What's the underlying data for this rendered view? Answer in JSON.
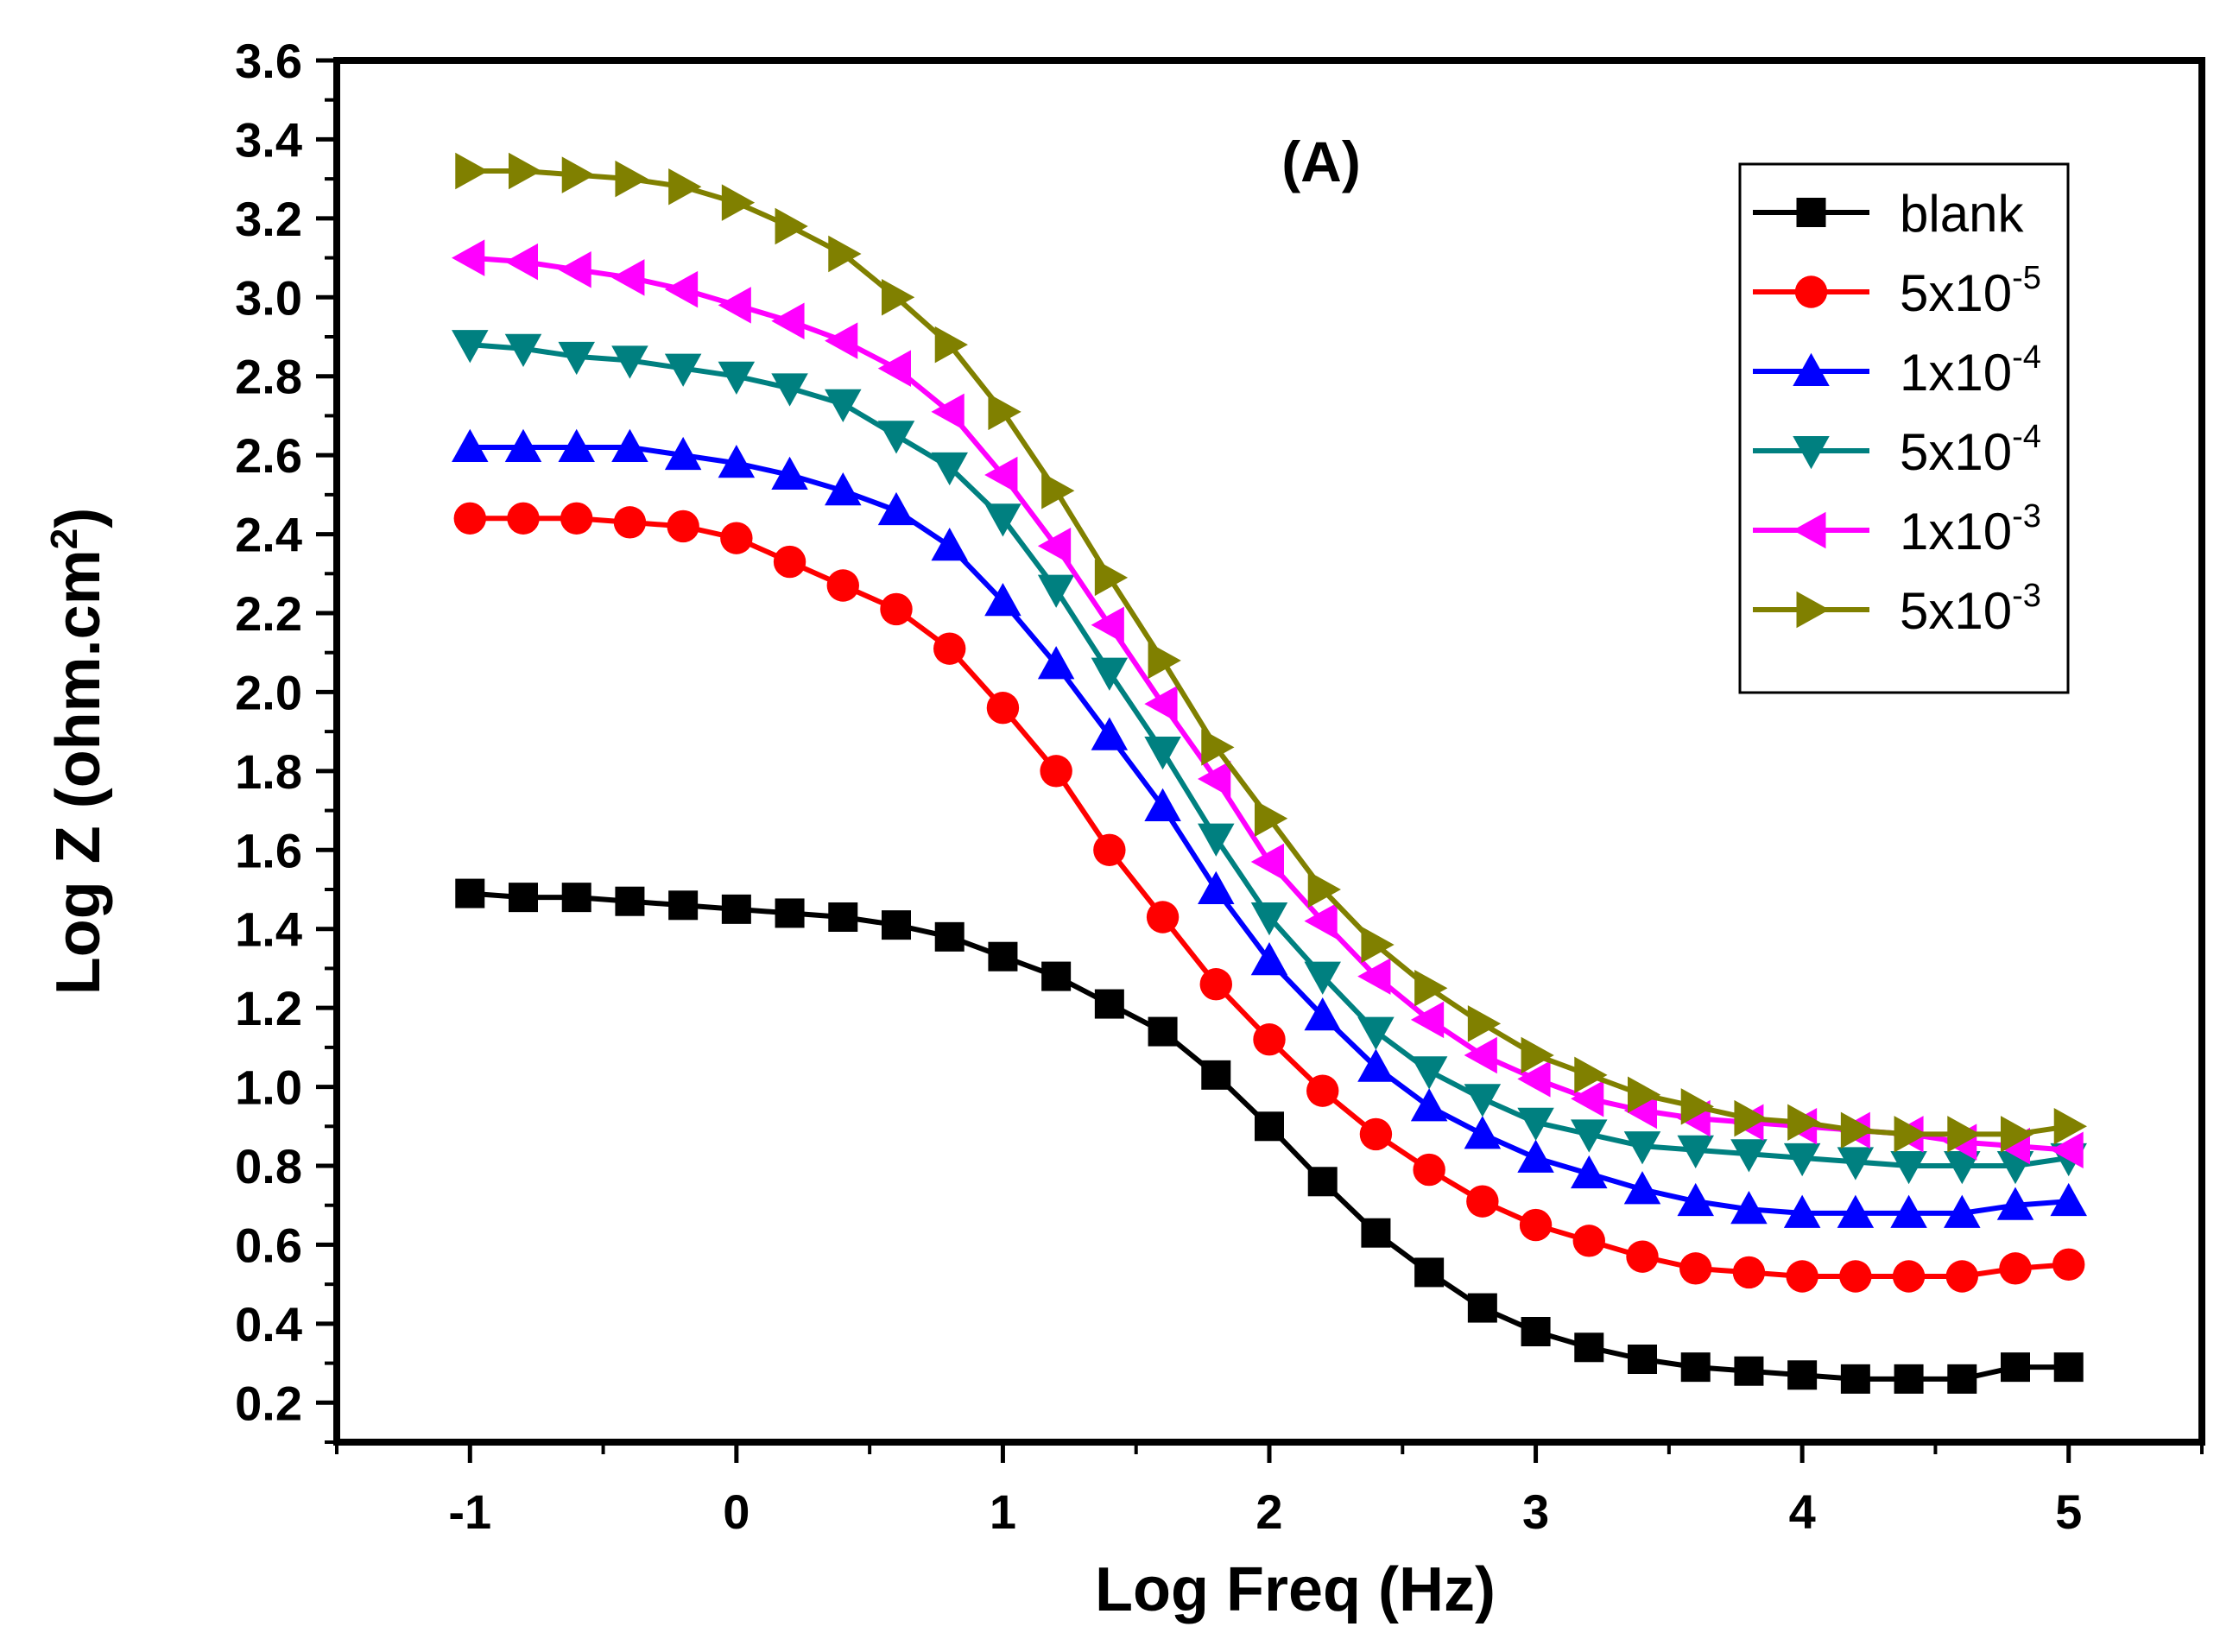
{
  "chart_data": {
    "type": "line",
    "title": "",
    "annotation": "(A)",
    "xlabel": "Log Freq (Hz)",
    "ylabel": {
      "text": "Log Z (ohm.cm",
      "sup": "2",
      "close": ")"
    },
    "xlim": [
      -1.5,
      5.5
    ],
    "ylim": [
      0.1,
      3.6
    ],
    "xticks": [
      "-1",
      "0",
      "1",
      "2",
      "3",
      "4",
      "5"
    ],
    "yticks": [
      "0.2",
      "0.4",
      "0.6",
      "0.8",
      "1.0",
      "1.2",
      "1.4",
      "1.6",
      "1.8",
      "2.0",
      "2.2",
      "2.4",
      "2.6",
      "2.8",
      "3.0",
      "3.2",
      "3.4",
      "3.6"
    ],
    "legend_position": "top-right",
    "x": [
      -1.0,
      -0.8,
      -0.6,
      -0.4,
      -0.2,
      0.0,
      0.2,
      0.4,
      0.6,
      0.8,
      1.0,
      1.2,
      1.4,
      1.6,
      1.8,
      2.0,
      2.2,
      2.4,
      2.6,
      2.8,
      3.0,
      3.2,
      3.4,
      3.6,
      3.8,
      4.0,
      4.2,
      4.4,
      4.6,
      4.8,
      5.0
    ],
    "series": [
      {
        "name": "blank",
        "legend": {
          "base": "blank",
          "sup": ""
        },
        "color": "#000000",
        "marker": "square",
        "values": [
          1.49,
          1.48,
          1.48,
          1.47,
          1.46,
          1.45,
          1.44,
          1.43,
          1.41,
          1.38,
          1.33,
          1.28,
          1.21,
          1.14,
          1.03,
          0.9,
          0.76,
          0.63,
          0.53,
          0.44,
          0.38,
          0.34,
          0.31,
          0.29,
          0.28,
          0.27,
          0.26,
          0.26,
          0.26,
          0.29,
          0.29
        ]
      },
      {
        "name": "5x10-5",
        "legend": {
          "base": "5x10",
          "sup": "-5"
        },
        "color": "#ff0000",
        "marker": "circle",
        "values": [
          2.44,
          2.44,
          2.44,
          2.43,
          2.42,
          2.39,
          2.33,
          2.27,
          2.21,
          2.11,
          1.96,
          1.8,
          1.6,
          1.43,
          1.26,
          1.12,
          0.99,
          0.88,
          0.79,
          0.71,
          0.65,
          0.61,
          0.57,
          0.54,
          0.53,
          0.52,
          0.52,
          0.52,
          0.52,
          0.54,
          0.55
        ]
      },
      {
        "name": "1x10-4",
        "legend": {
          "base": "1x10",
          "sup": "-4"
        },
        "color": "#0000ff",
        "marker": "triangle-up",
        "values": [
          2.62,
          2.62,
          2.62,
          2.62,
          2.6,
          2.58,
          2.55,
          2.51,
          2.46,
          2.37,
          2.23,
          2.07,
          1.89,
          1.71,
          1.5,
          1.32,
          1.18,
          1.05,
          0.95,
          0.88,
          0.82,
          0.78,
          0.74,
          0.71,
          0.69,
          0.68,
          0.68,
          0.68,
          0.68,
          0.7,
          0.71
        ]
      },
      {
        "name": "5x10-4",
        "legend": {
          "base": "5x10",
          "sup": "-4"
        },
        "color": "#008080",
        "marker": "triangle-down",
        "values": [
          2.88,
          2.87,
          2.85,
          2.84,
          2.82,
          2.8,
          2.77,
          2.73,
          2.65,
          2.57,
          2.44,
          2.26,
          2.05,
          1.85,
          1.63,
          1.43,
          1.28,
          1.14,
          1.04,
          0.97,
          0.91,
          0.88,
          0.85,
          0.84,
          0.83,
          0.82,
          0.81,
          0.8,
          0.8,
          0.8,
          0.82
        ]
      },
      {
        "name": "1x10-3",
        "legend": {
          "base": "1x10",
          "sup": "-3"
        },
        "color": "#ff00ff",
        "marker": "triangle-left",
        "values": [
          3.1,
          3.09,
          3.07,
          3.05,
          3.02,
          2.98,
          2.94,
          2.89,
          2.82,
          2.71,
          2.55,
          2.37,
          2.17,
          1.97,
          1.78,
          1.57,
          1.42,
          1.28,
          1.17,
          1.08,
          1.02,
          0.97,
          0.94,
          0.92,
          0.91,
          0.9,
          0.89,
          0.88,
          0.86,
          0.85,
          0.84
        ]
      },
      {
        "name": "5x10-3",
        "legend": {
          "base": "5x10",
          "sup": "-3"
        },
        "color": "#808000",
        "marker": "triangle-right",
        "values": [
          3.32,
          3.32,
          3.31,
          3.3,
          3.28,
          3.24,
          3.18,
          3.11,
          3.0,
          2.88,
          2.71,
          2.51,
          2.29,
          2.08,
          1.86,
          1.68,
          1.5,
          1.36,
          1.25,
          1.16,
          1.08,
          1.03,
          0.98,
          0.95,
          0.92,
          0.91,
          0.89,
          0.88,
          0.88,
          0.88,
          0.9
        ]
      }
    ]
  }
}
